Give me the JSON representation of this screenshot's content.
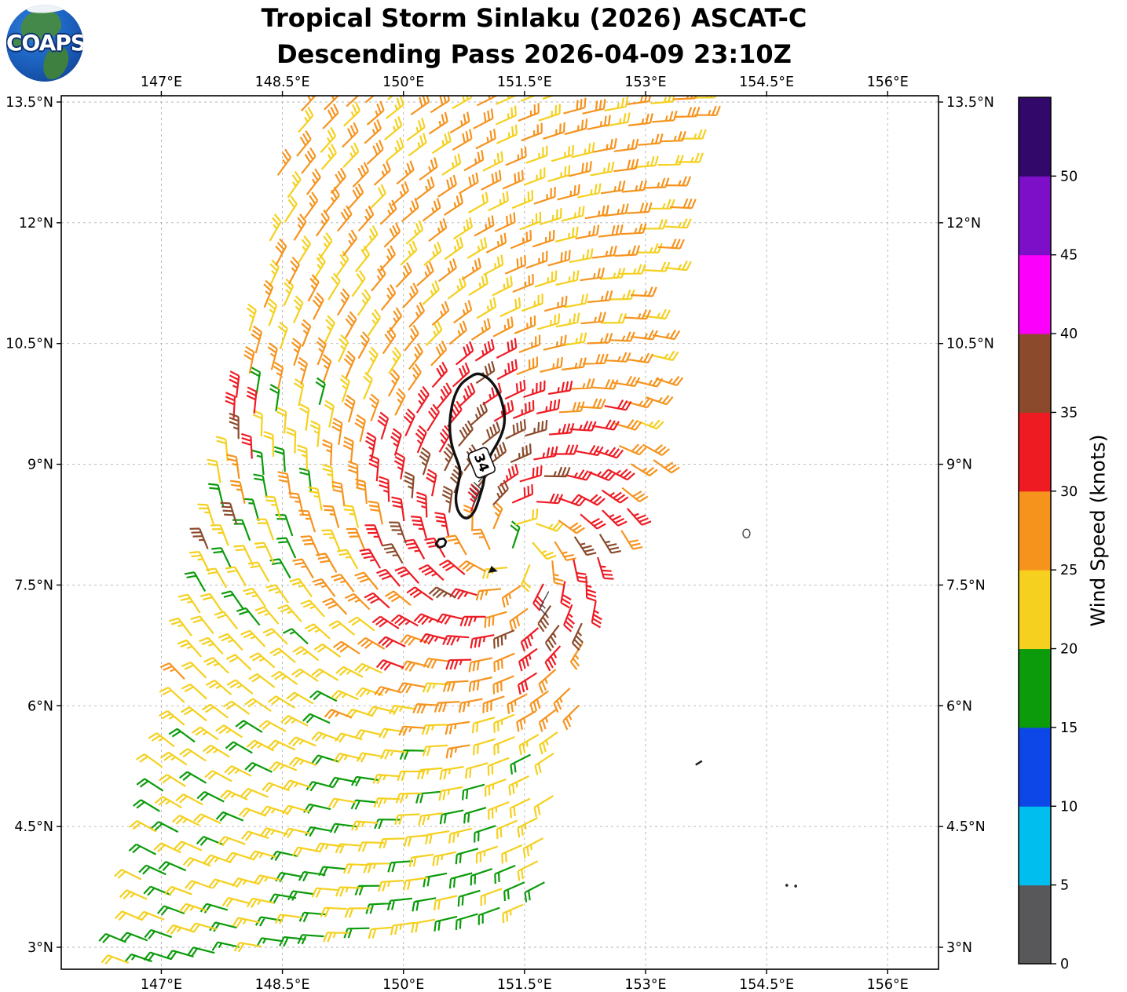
{
  "header": {
    "logo_text": "COAPS",
    "title_line1": "Tropical Storm Sinlaku (2026) ASCAT-C",
    "title_line2": "Descending Pass 2026-04-09 23:10Z"
  },
  "chart_data": {
    "type": "wind_barb_map",
    "title": "Tropical Storm Sinlaku (2026) ASCAT-C Descending Pass 2026-04-09 23:10Z",
    "x_axis": {
      "tick_values": [
        147,
        148.5,
        150,
        151.5,
        153,
        154.5,
        156
      ],
      "tick_labels": [
        "147°E",
        "148.5°E",
        "150°E",
        "151.5°E",
        "153°E",
        "154.5°E",
        "156°E"
      ],
      "range": [
        145.76,
        156.63
      ],
      "labels_on": [
        "top",
        "bottom"
      ]
    },
    "y_axis": {
      "tick_values": [
        13.5,
        12,
        10.5,
        9,
        7.5,
        6,
        4.5,
        3
      ],
      "tick_labels": [
        "13.5°N",
        "12°N",
        "10.5°N",
        "9°N",
        "7.5°N",
        "6°N",
        "4.5°N",
        "3°N"
      ],
      "range": [
        2.727,
        13.578
      ],
      "labels_on": [
        "left",
        "right"
      ]
    },
    "grid": {
      "on": true,
      "style": "dashed",
      "color": "#b3b3b3"
    },
    "colorbar": {
      "label": "Wind Speed (knots)",
      "tick_values": [
        0,
        5,
        10,
        15,
        20,
        25,
        30,
        35,
        40,
        45,
        50
      ],
      "bin_edges": [
        0,
        5,
        10,
        15,
        20,
        25,
        30,
        35,
        40,
        45,
        50,
        55
      ],
      "colors": [
        "#58585a",
        "#00bfef",
        "#0d47e8",
        "#0b9b0b",
        "#f5d01e",
        "#f6931d",
        "#ee1b23",
        "#8b4a2b",
        "#fb00fb",
        "#7d0fc9",
        "#32096b"
      ],
      "position": "right"
    },
    "storm": {
      "name": "Sinlaku",
      "center_lon": 151.36,
      "center_lat": 7.95,
      "circulation": "counterclockwise",
      "max_wind_knots": 38
    },
    "wind_field_model": {
      "center": [
        151.36,
        7.95
      ],
      "base_speed_at_lat3": 20.2,
      "base_speed_lat_slope": 0.56,
      "ring_amp": 11.5,
      "ring_radius_deg": 0.95,
      "sigma_base": 0.85,
      "sigma_var": 0.55,
      "sigma_phase_deg": 150,
      "eye_dip": 6.0,
      "eye_sigma": 0.35,
      "inflow_deg": 22,
      "noise_amp": 6.5,
      "ridge": {
        "a": [
          150.95,
          8.6
        ],
        "b": [
          150.88,
          10.15
        ],
        "width": 0.55,
        "amp": 4.8
      },
      "green_zone": {
        "lon_max": 149.65,
        "lat_min": 6.75,
        "lat_max": 10.05,
        "r_min": 1.9,
        "amount": 4.2,
        "prob": 0.5
      },
      "edge_red": {
        "dist": 0.3,
        "lat_min": 7.9,
        "lat_max": 10.6,
        "prob": 0.3,
        "base": 30.5
      }
    },
    "swath": {
      "lat_min": 2.78,
      "lat_max": 13.72,
      "grid_spacing_deg": 0.272,
      "row_rise": 0.15,
      "left_lon_at_lat3": 146.63,
      "left_tilt": 0.198,
      "right_lon_at_lat3": 151.44,
      "right_tilt": 0.209,
      "bulge_amp": 0.4,
      "bulge_lat": 9.2,
      "bulge_sigma": 1.15
    },
    "contour_34kt": {
      "value": 34,
      "points": [
        [
          150.8,
          10.07
        ],
        [
          150.92,
          10.14
        ],
        [
          151.06,
          10.07
        ],
        [
          151.17,
          9.92
        ],
        [
          151.24,
          9.72
        ],
        [
          151.26,
          9.5
        ],
        [
          151.19,
          9.3
        ],
        [
          151.09,
          9.14
        ],
        [
          151.01,
          8.97
        ],
        [
          151.0,
          8.78
        ],
        [
          150.94,
          8.58
        ],
        [
          150.88,
          8.4
        ],
        [
          150.78,
          8.31
        ],
        [
          150.68,
          8.39
        ],
        [
          150.64,
          8.57
        ],
        [
          150.68,
          8.76
        ],
        [
          150.71,
          8.92
        ],
        [
          150.66,
          9.06
        ],
        [
          150.6,
          9.22
        ],
        [
          150.57,
          9.42
        ],
        [
          150.58,
          9.62
        ],
        [
          150.62,
          9.82
        ],
        [
          150.7,
          9.99
        ]
      ]
    },
    "contour_label": {
      "text": "34",
      "lon": 150.97,
      "lat": 9.02,
      "rotation_deg": 68
    },
    "flagged_barbs": [
      {
        "lon": 150.93,
        "lat": 8.78,
        "speed": 37
      },
      {
        "lon": 150.86,
        "lat": 8.48,
        "speed": 36
      },
      {
        "lon": 151.8,
        "lat": 7.42,
        "speed": 13
      }
    ],
    "map_features": [
      {
        "type": "blob",
        "lon": 150.47,
        "lat": 8.02
      },
      {
        "type": "triangle",
        "lon": 151.11,
        "lat": 7.68
      },
      {
        "type": "loop",
        "lon": 154.25,
        "lat": 8.14
      },
      {
        "type": "dash",
        "lon": 153.66,
        "lat": 5.29
      },
      {
        "type": "dot",
        "lon": 154.75,
        "lat": 3.77
      },
      {
        "type": "dot",
        "lon": 154.86,
        "lat": 3.76
      }
    ]
  }
}
